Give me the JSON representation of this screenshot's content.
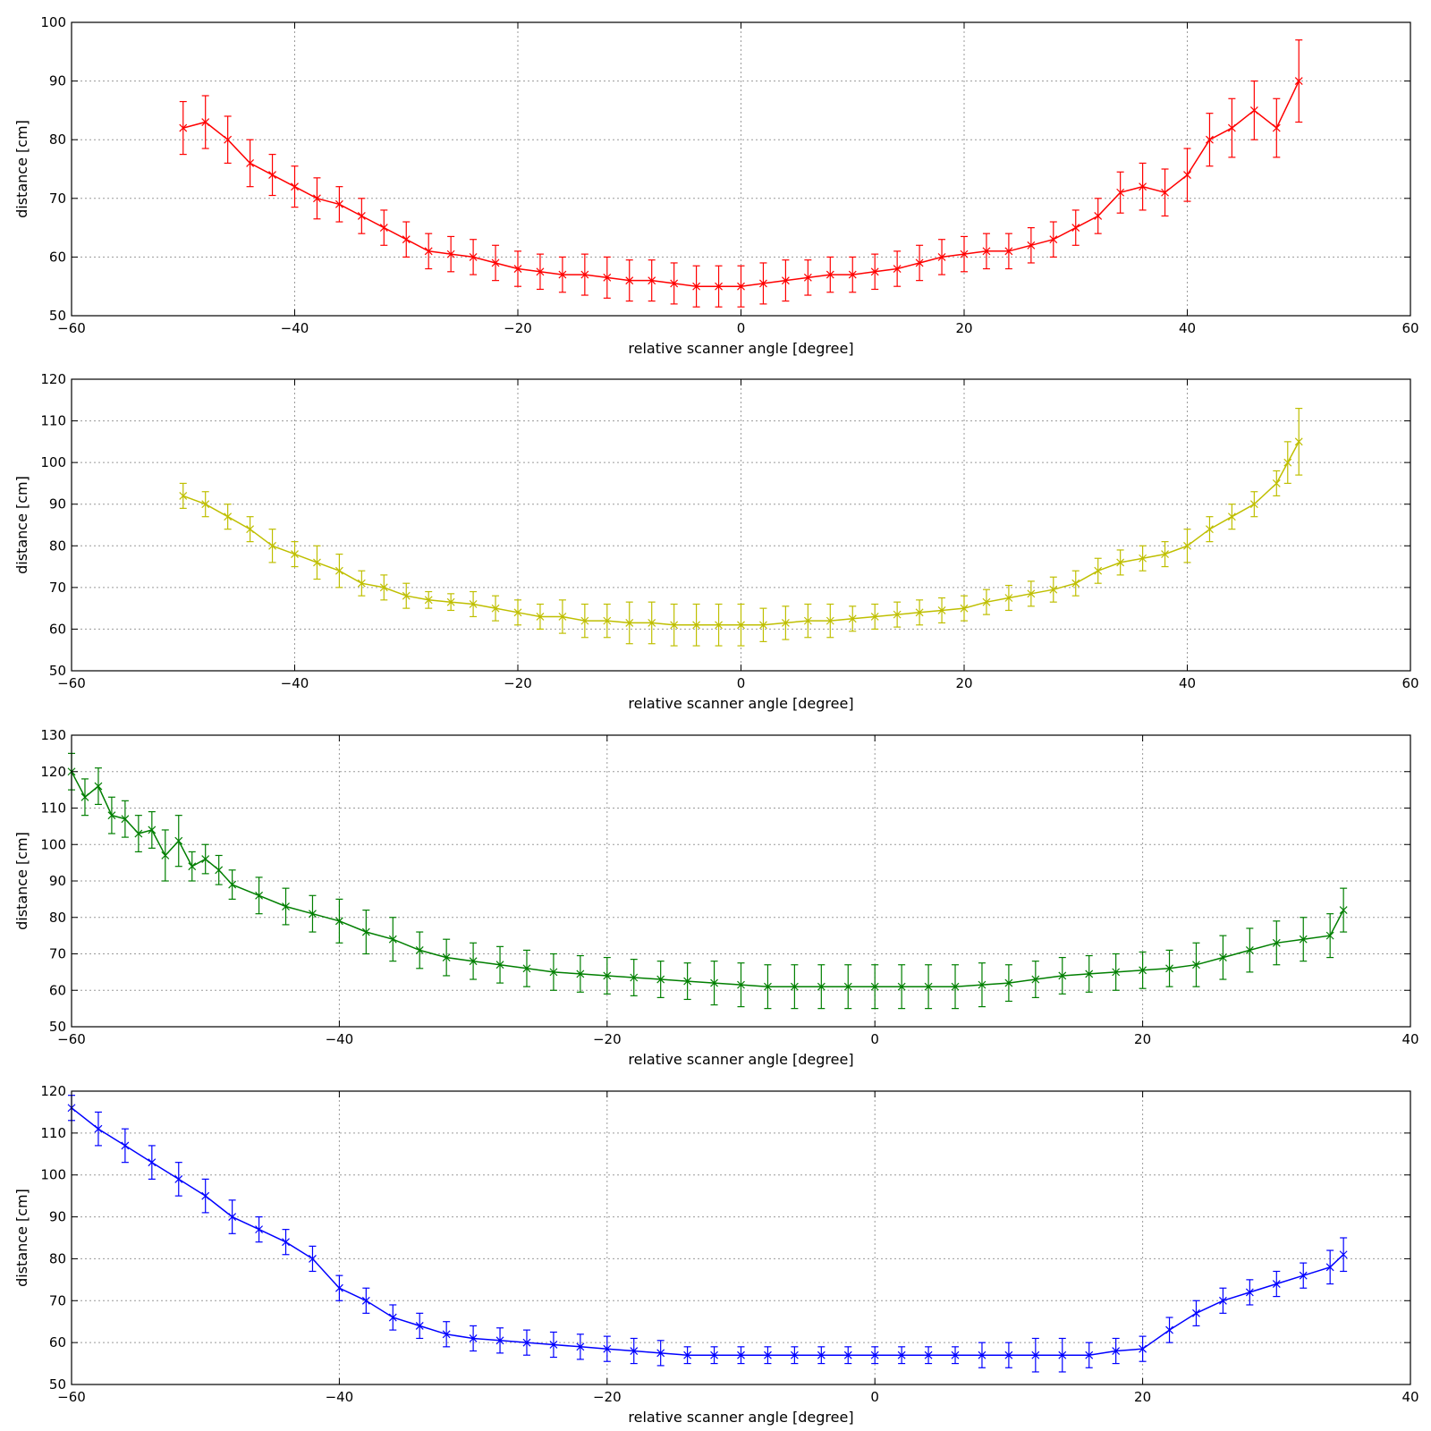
{
  "chart_data": [
    {
      "type": "line",
      "color": "#ff0000",
      "marker": "x",
      "error_bars": true,
      "xlabel": "relative scanner angle [degree]",
      "ylabel": "distance [cm]",
      "xlim": [
        -60,
        60
      ],
      "ylim": [
        50,
        100
      ],
      "xticks": [
        -60,
        -40,
        -20,
        0,
        20,
        40,
        60
      ],
      "yticks": [
        50,
        60,
        70,
        80,
        90,
        100
      ],
      "xtick_labels": [
        "−60",
        "−40",
        "−20",
        "0",
        "20",
        "40",
        "60"
      ],
      "ytick_labels": [
        "50",
        "60",
        "70",
        "80",
        "90",
        "100"
      ],
      "grid": true,
      "series": [
        {
          "x": [
            -50,
            -48,
            -46,
            -44,
            -42,
            -40,
            -38,
            -36,
            -34,
            -32,
            -30,
            -28,
            -26,
            -24,
            -22,
            -20,
            -18,
            -16,
            -14,
            -12,
            -10,
            -8,
            -6,
            -4,
            -2,
            0,
            2,
            4,
            6,
            8,
            10,
            12,
            14,
            16,
            18,
            20,
            22,
            24,
            26,
            28,
            30,
            32,
            34,
            36,
            38,
            40,
            42,
            44,
            46,
            48,
            50
          ],
          "y": [
            82,
            83,
            80,
            76,
            74,
            72,
            70,
            69,
            67,
            65,
            63,
            61,
            60.5,
            60,
            59,
            58,
            57.5,
            57,
            57,
            56.5,
            56,
            56,
            55.5,
            55,
            55,
            55,
            55.5,
            56,
            56.5,
            57,
            57,
            57.5,
            58,
            59,
            60,
            60.5,
            61,
            61,
            62,
            63,
            65,
            67,
            71,
            72,
            71,
            74,
            80,
            82,
            85,
            82,
            90
          ],
          "yerr": [
            4.5,
            4.5,
            4,
            4,
            3.5,
            3.5,
            3.5,
            3,
            3,
            3,
            3,
            3,
            3,
            3,
            3,
            3,
            3,
            3,
            3.5,
            3.5,
            3.5,
            3.5,
            3.5,
            3.5,
            3.5,
            3.5,
            3.5,
            3.5,
            3,
            3,
            3,
            3,
            3,
            3,
            3,
            3,
            3,
            3,
            3,
            3,
            3,
            3,
            3.5,
            4,
            4,
            4.5,
            4.5,
            5,
            5,
            5,
            7
          ]
        }
      ]
    },
    {
      "type": "line",
      "color": "#bfbf00",
      "marker": "x",
      "error_bars": true,
      "xlabel": "relative scanner angle [degree]",
      "ylabel": "distance [cm]",
      "xlim": [
        -60,
        60
      ],
      "ylim": [
        50,
        120
      ],
      "xticks": [
        -60,
        -40,
        -20,
        0,
        20,
        40,
        60
      ],
      "yticks": [
        50,
        60,
        70,
        80,
        90,
        100,
        110,
        120
      ],
      "xtick_labels": [
        "−60",
        "−40",
        "−20",
        "0",
        "20",
        "40",
        "60"
      ],
      "ytick_labels": [
        "50",
        "60",
        "70",
        "80",
        "90",
        "100",
        "110",
        "120"
      ],
      "grid": true,
      "series": [
        {
          "x": [
            -50,
            -48,
            -46,
            -44,
            -42,
            -40,
            -38,
            -36,
            -34,
            -32,
            -30,
            -28,
            -26,
            -24,
            -22,
            -20,
            -18,
            -16,
            -14,
            -12,
            -10,
            -8,
            -6,
            -4,
            -2,
            0,
            2,
            4,
            6,
            8,
            10,
            12,
            14,
            16,
            18,
            20,
            22,
            24,
            26,
            28,
            30,
            32,
            34,
            36,
            38,
            40,
            42,
            44,
            46,
            48,
            49,
            50
          ],
          "y": [
            92,
            90,
            87,
            84,
            80,
            78,
            76,
            74,
            71,
            70,
            68,
            67,
            66.5,
            66,
            65,
            64,
            63,
            63,
            62,
            62,
            61.5,
            61.5,
            61,
            61,
            61,
            61,
            61,
            61.5,
            62,
            62,
            62.5,
            63,
            63.5,
            64,
            64.5,
            65,
            66.5,
            67.5,
            68.5,
            69.5,
            71,
            74,
            76,
            77,
            78,
            80,
            84,
            87,
            90,
            95,
            100,
            105
          ],
          "yerr": [
            3,
            3,
            3,
            3,
            4,
            3,
            4,
            4,
            3,
            3,
            3,
            2,
            2,
            3,
            3,
            3,
            3,
            4,
            4,
            4,
            5,
            5,
            5,
            5,
            5,
            5,
            4,
            4,
            4,
            4,
            3,
            3,
            3,
            3,
            3,
            3,
            3,
            3,
            3,
            3,
            3,
            3,
            3,
            3,
            3,
            4,
            3,
            3,
            3,
            3,
            5,
            8
          ]
        }
      ]
    },
    {
      "type": "line",
      "color": "#007f00",
      "marker": "x",
      "error_bars": true,
      "xlabel": "relative scanner angle [degree]",
      "ylabel": "distance [cm]",
      "xlim": [
        -60,
        40
      ],
      "ylim": [
        50,
        130
      ],
      "xticks": [
        -60,
        -40,
        -20,
        0,
        20,
        40
      ],
      "yticks": [
        50,
        60,
        70,
        80,
        90,
        100,
        110,
        120,
        130
      ],
      "xtick_labels": [
        "−60",
        "−40",
        "−20",
        "0",
        "20",
        "40"
      ],
      "ytick_labels": [
        "50",
        "60",
        "70",
        "80",
        "90",
        "100",
        "110",
        "120",
        "130"
      ],
      "grid": true,
      "series": [
        {
          "x": [
            -60,
            -59,
            -58,
            -57,
            -56,
            -55,
            -54,
            -53,
            -52,
            -51,
            -50,
            -49,
            -48,
            -46,
            -44,
            -42,
            -40,
            -38,
            -36,
            -34,
            -32,
            -30,
            -28,
            -26,
            -24,
            -22,
            -20,
            -18,
            -16,
            -14,
            -12,
            -10,
            -8,
            -6,
            -4,
            -2,
            0,
            2,
            4,
            6,
            8,
            10,
            12,
            14,
            16,
            18,
            20,
            22,
            24,
            26,
            28,
            30,
            32,
            34,
            35
          ],
          "y": [
            120,
            113,
            116,
            108,
            107,
            103,
            104,
            97,
            101,
            94,
            96,
            93,
            89,
            86,
            83,
            81,
            79,
            76,
            74,
            71,
            69,
            68,
            67,
            66,
            65,
            64.5,
            64,
            63.5,
            63,
            62.5,
            62,
            61.5,
            61,
            61,
            61,
            61,
            61,
            61,
            61,
            61,
            61.5,
            62,
            63,
            64,
            64.5,
            65,
            65.5,
            66,
            67,
            69,
            71,
            73,
            74,
            75,
            82
          ],
          "yerr": [
            5,
            5,
            5,
            5,
            5,
            5,
            5,
            7,
            7,
            4,
            4,
            4,
            4,
            5,
            5,
            5,
            6,
            6,
            6,
            5,
            5,
            5,
            5,
            5,
            5,
            5,
            5,
            5,
            5,
            5,
            6,
            6,
            6,
            6,
            6,
            6,
            6,
            6,
            6,
            6,
            6,
            5,
            5,
            5,
            5,
            5,
            5,
            5,
            6,
            6,
            6,
            6,
            6,
            6,
            6
          ]
        }
      ]
    },
    {
      "type": "line",
      "color": "#0000ff",
      "marker": "x",
      "error_bars": true,
      "xlabel": "relative scanner angle [degree]",
      "ylabel": "distance [cm]",
      "xlim": [
        -60,
        40
      ],
      "ylim": [
        50,
        120
      ],
      "xticks": [
        -60,
        -40,
        -20,
        0,
        20,
        40
      ],
      "yticks": [
        50,
        60,
        70,
        80,
        90,
        100,
        110,
        120
      ],
      "xtick_labels": [
        "−60",
        "−40",
        "−20",
        "0",
        "20",
        "40"
      ],
      "ytick_labels": [
        "50",
        "60",
        "70",
        "80",
        "90",
        "100",
        "110",
        "120"
      ],
      "grid": true,
      "series": [
        {
          "x": [
            -60,
            -58,
            -56,
            -54,
            -52,
            -50,
            -48,
            -46,
            -44,
            -42,
            -40,
            -38,
            -36,
            -34,
            -32,
            -30,
            -28,
            -26,
            -24,
            -22,
            -20,
            -18,
            -16,
            -14,
            -12,
            -10,
            -8,
            -6,
            -4,
            -2,
            0,
            2,
            4,
            6,
            8,
            10,
            12,
            14,
            16,
            18,
            20,
            22,
            24,
            26,
            28,
            30,
            32,
            34,
            35
          ],
          "y": [
            116,
            111,
            107,
            103,
            99,
            95,
            90,
            87,
            84,
            80,
            73,
            70,
            66,
            64,
            62,
            61,
            60.5,
            60,
            59.5,
            59,
            58.5,
            58,
            57.5,
            57,
            57,
            57,
            57,
            57,
            57,
            57,
            57,
            57,
            57,
            57,
            57,
            57,
            57,
            57,
            57,
            58,
            58.5,
            63,
            67,
            70,
            72,
            74,
            76,
            78,
            81
          ],
          "yerr": [
            3,
            4,
            4,
            4,
            4,
            4,
            4,
            3,
            3,
            3,
            3,
            3,
            3,
            3,
            3,
            3,
            3,
            3,
            3,
            3,
            3,
            3,
            3,
            2,
            2,
            2,
            2,
            2,
            2,
            2,
            2,
            2,
            2,
            2,
            3,
            3,
            4,
            4,
            3,
            3,
            3,
            3,
            3,
            3,
            3,
            3,
            3,
            4,
            4
          ]
        }
      ]
    }
  ]
}
